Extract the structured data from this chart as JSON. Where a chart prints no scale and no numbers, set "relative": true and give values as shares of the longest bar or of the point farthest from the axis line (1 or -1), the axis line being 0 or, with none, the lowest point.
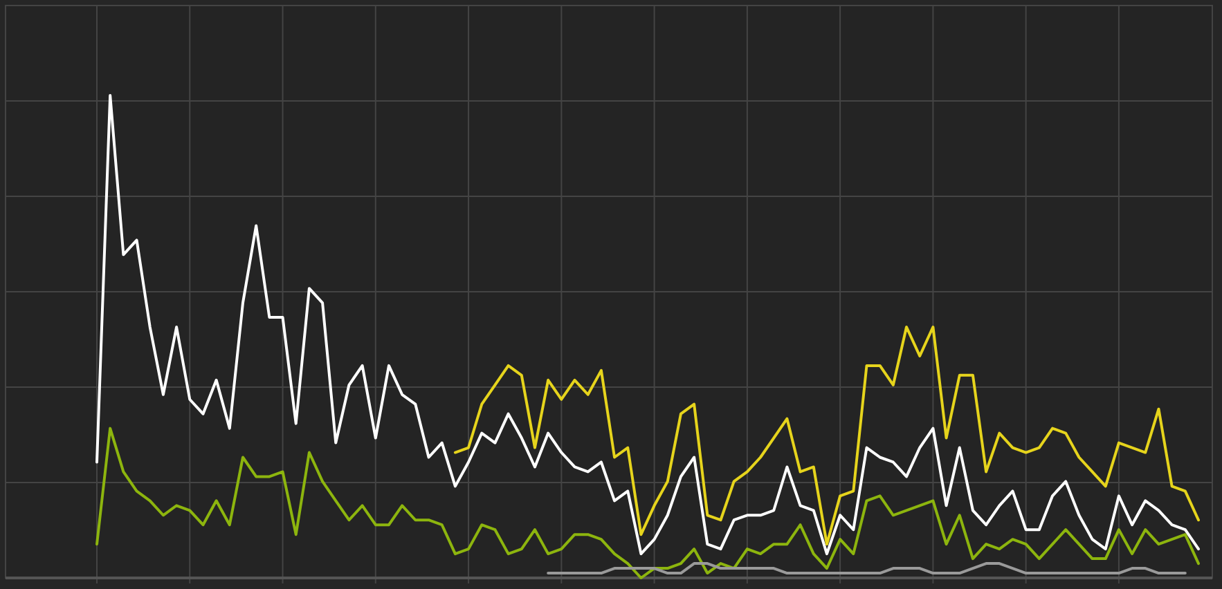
{
  "chart_data": {
    "type": "line",
    "relative": true,
    "grid": true,
    "marker": "none",
    "line_style": "solid",
    "categories": [
      null,
      null,
      null,
      null,
      null,
      null,
      null,
      null,
      null,
      null,
      null,
      null,
      null,
      null,
      null,
      null,
      null,
      null,
      null,
      null,
      null,
      null,
      null,
      null,
      null,
      null,
      null,
      null,
      null,
      null,
      null,
      null,
      null,
      null,
      null,
      null,
      null,
      null,
      null,
      null,
      null,
      null,
      null,
      null,
      null,
      null,
      null,
      null,
      null,
      null,
      null,
      null,
      null,
      null,
      null,
      null,
      null,
      null,
      null,
      null,
      null,
      null,
      null,
      null,
      null,
      null,
      null,
      null,
      null,
      null,
      null,
      null,
      null,
      null,
      null,
      null,
      null,
      null,
      null,
      null,
      null,
      null,
      null,
      null
    ],
    "series": [
      {
        "color": "#ffffff",
        "values": [
          0.24,
          1.0,
          0.67,
          0.7,
          0.52,
          0.38,
          0.52,
          0.37,
          0.34,
          0.41,
          0.31,
          0.57,
          0.73,
          0.54,
          0.54,
          0.32,
          0.6,
          0.57,
          0.28,
          0.4,
          0.44,
          0.29,
          0.44,
          0.38,
          0.36,
          0.25,
          0.28,
          0.19,
          0.24,
          0.3,
          0.28,
          0.34,
          0.29,
          0.23,
          0.3,
          0.26,
          0.23,
          0.22,
          0.24,
          0.16,
          0.18,
          0.05,
          0.08,
          0.13,
          0.21,
          0.25,
          0.07,
          0.06,
          0.12,
          0.13,
          0.13,
          0.14,
          0.23,
          0.15,
          0.14,
          0.05,
          0.13,
          0.1,
          0.27,
          0.25,
          0.24,
          0.21,
          0.27,
          0.31,
          0.15,
          0.27,
          0.14,
          0.11,
          0.15,
          0.18,
          0.1,
          0.1,
          0.17,
          0.2,
          0.13,
          0.08,
          0.06,
          0.17,
          0.11,
          0.16,
          0.14,
          0.11,
          0.1,
          0.06
        ]
      },
      {
        "color": "#8db50e",
        "values": [
          0.07,
          0.31,
          0.22,
          0.18,
          0.16,
          0.13,
          0.15,
          0.14,
          0.11,
          0.16,
          0.11,
          0.25,
          0.21,
          0.21,
          0.22,
          0.09,
          0.26,
          0.2,
          0.16,
          0.12,
          0.15,
          0.11,
          0.11,
          0.15,
          0.12,
          0.12,
          0.11,
          0.05,
          0.06,
          0.11,
          0.1,
          0.05,
          0.06,
          0.1,
          0.05,
          0.06,
          0.09,
          0.09,
          0.08,
          0.05,
          0.03,
          0.0,
          0.02,
          0.02,
          0.03,
          0.06,
          0.01,
          0.03,
          0.02,
          0.06,
          0.05,
          0.07,
          0.07,
          0.11,
          0.05,
          0.02,
          0.08,
          0.05,
          0.16,
          0.17,
          0.13,
          0.14,
          0.15,
          0.16,
          0.07,
          0.13,
          0.04,
          0.07,
          0.06,
          0.08,
          0.07,
          0.04,
          0.07,
          0.1,
          0.07,
          0.04,
          0.04,
          0.1,
          0.05,
          0.1,
          0.07,
          0.08,
          0.09,
          0.03
        ]
      },
      {
        "color": "#e6d41c",
        "values": [
          null,
          null,
          null,
          null,
          null,
          null,
          null,
          null,
          null,
          null,
          null,
          null,
          null,
          null,
          null,
          null,
          null,
          null,
          null,
          null,
          null,
          null,
          null,
          null,
          null,
          null,
          null,
          0.26,
          0.27,
          0.36,
          0.4,
          0.44,
          0.42,
          0.27,
          0.41,
          0.37,
          0.41,
          0.38,
          0.43,
          0.25,
          0.27,
          0.09,
          0.15,
          0.2,
          0.34,
          0.36,
          0.13,
          0.12,
          0.2,
          0.22,
          0.25,
          0.29,
          0.33,
          0.22,
          0.23,
          0.07,
          0.17,
          0.18,
          0.44,
          0.44,
          0.4,
          0.52,
          0.46,
          0.52,
          0.29,
          0.42,
          0.42,
          0.22,
          0.3,
          0.27,
          0.26,
          0.27,
          0.31,
          0.3,
          0.25,
          0.22,
          0.19,
          0.28,
          0.27,
          0.26,
          0.35,
          0.19,
          0.18,
          0.12
        ]
      },
      {
        "color": "#9a9a9a",
        "values": [
          null,
          null,
          null,
          null,
          null,
          null,
          null,
          null,
          null,
          null,
          null,
          null,
          null,
          null,
          null,
          null,
          null,
          null,
          null,
          null,
          null,
          null,
          null,
          null,
          null,
          null,
          null,
          null,
          null,
          null,
          null,
          null,
          null,
          null,
          0.01,
          0.01,
          0.01,
          0.01,
          0.01,
          0.02,
          0.02,
          0.02,
          0.02,
          0.01,
          0.01,
          0.03,
          0.03,
          0.02,
          0.02,
          0.02,
          0.02,
          0.02,
          0.01,
          0.01,
          0.01,
          0.01,
          0.01,
          0.01,
          0.01,
          0.01,
          0.02,
          0.02,
          0.02,
          0.01,
          0.01,
          0.01,
          0.02,
          0.03,
          0.03,
          0.02,
          0.01,
          0.01,
          0.01,
          0.01,
          0.01,
          0.01,
          0.01,
          0.01,
          0.02,
          0.02,
          0.01,
          0.01,
          0.01,
          null
        ]
      }
    ]
  }
}
